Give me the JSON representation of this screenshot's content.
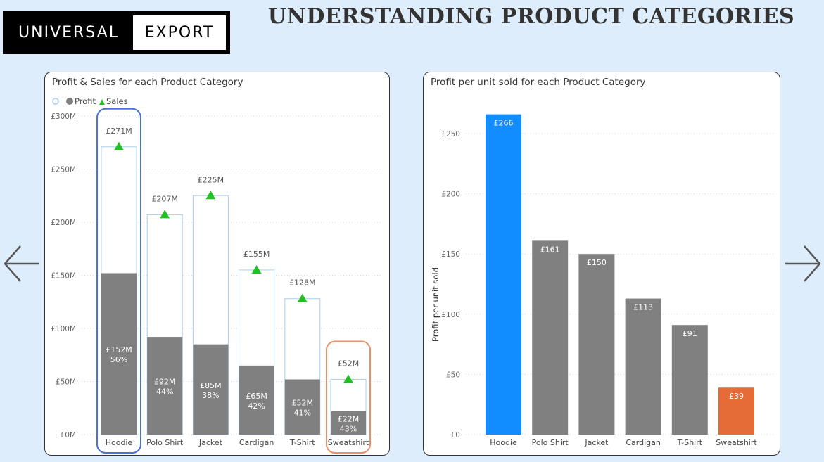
{
  "logo": {
    "left": "UNIVERSAL",
    "right": "EXPORT"
  },
  "page_title": "UNDERSTANDING PRODUCT CATEGORIES",
  "nav": {
    "prev_icon": "arrow-left-icon",
    "next_icon": "arrow-right-icon"
  },
  "colors": {
    "background": "#deedfb",
    "profit": "#808080",
    "sales_marker": "#22c022",
    "bar_outline": "#a8d0f0",
    "highlight_blue": "#118dff",
    "highlight_orange": "#e66c37",
    "hoodie_outline": "#4a72d8",
    "sweatshirt_outline": "#e8906a"
  },
  "chart_data": [
    {
      "type": "bar",
      "title": "Profit & Sales for each Product Category",
      "legend": [
        "Profit",
        "Sales"
      ],
      "legend_placement": "top-left",
      "categories": [
        "Hoodie",
        "Polo Shirt",
        "Jacket",
        "Cardigan",
        "T-Shirt",
        "Sweatshirt"
      ],
      "series": [
        {
          "name": "Sales",
          "values": [
            271,
            207,
            225,
            155,
            128,
            52
          ],
          "labels": [
            "£271M",
            "£207M",
            "£225M",
            "£155M",
            "£128M",
            "£52M"
          ]
        },
        {
          "name": "Profit",
          "values": [
            152,
            92,
            85,
            65,
            52,
            22
          ],
          "labels": [
            "£152M",
            "£92M",
            "£85M",
            "£65M",
            "£52M",
            "£22M"
          ],
          "percent_labels": [
            "56%",
            "44%",
            "38%",
            "42%",
            "41%",
            "43%"
          ]
        }
      ],
      "yticks": [
        "£0M",
        "£50M",
        "£100M",
        "£150M",
        "£200M",
        "£250M",
        "£300M"
      ],
      "ylim": [
        0,
        300
      ],
      "grid": true,
      "highlighted": [
        "Hoodie",
        "Sweatshirt"
      ]
    },
    {
      "type": "bar",
      "title": "Profit per unit sold for each Product Category",
      "ylabel": "Profit per unit sold",
      "categories": [
        "Hoodie",
        "Polo Shirt",
        "Jacket",
        "Cardigan",
        "T-Shirt",
        "Sweatshirt"
      ],
      "values": [
        266,
        161,
        150,
        113,
        91,
        39
      ],
      "labels": [
        "£266",
        "£161",
        "£150",
        "£113",
        "£91",
        "£39"
      ],
      "yticks": [
        "£0",
        "£50",
        "£100",
        "£150",
        "£200",
        "£250"
      ],
      "ylim": [
        0,
        270
      ],
      "grid": true,
      "highlighted": {
        "Hoodie": "#118dff",
        "Sweatshirt": "#e66c37"
      }
    }
  ]
}
